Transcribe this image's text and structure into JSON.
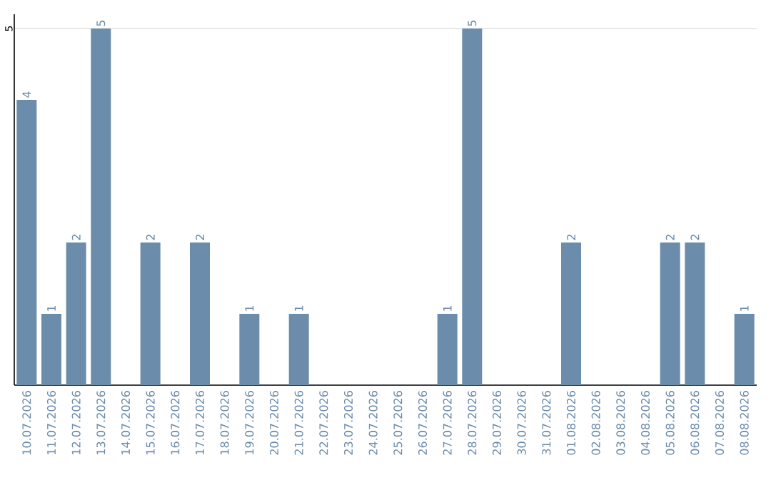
{
  "chart_data": {
    "type": "bar",
    "categories": [
      "10.07.2026",
      "11.07.2026",
      "12.07.2026",
      "13.07.2026",
      "14.07.2026",
      "15.07.2026",
      "16.07.2026",
      "17.07.2026",
      "18.07.2026",
      "19.07.2026",
      "20.07.2026",
      "21.07.2026",
      "22.07.2026",
      "23.07.2026",
      "24.07.2026",
      "25.07.2026",
      "26.07.2026",
      "27.07.2026",
      "28.07.2026",
      "29.07.2026",
      "30.07.2026",
      "31.07.2026",
      "01.08.2026",
      "02.08.2026",
      "03.08.2026",
      "04.08.2026",
      "05.08.2026",
      "06.08.2026",
      "07.08.2026",
      "08.08.2026"
    ],
    "values": [
      4,
      1,
      2,
      5,
      null,
      2,
      null,
      2,
      null,
      1,
      null,
      1,
      null,
      null,
      null,
      null,
      null,
      1,
      5,
      null,
      null,
      null,
      2,
      null,
      null,
      null,
      2,
      2,
      null,
      1
    ],
    "color": "#6b8cab",
    "ylim": [
      0,
      5.2
    ],
    "yticks": [
      5
    ],
    "grid": "y",
    "data_labels": true
  }
}
